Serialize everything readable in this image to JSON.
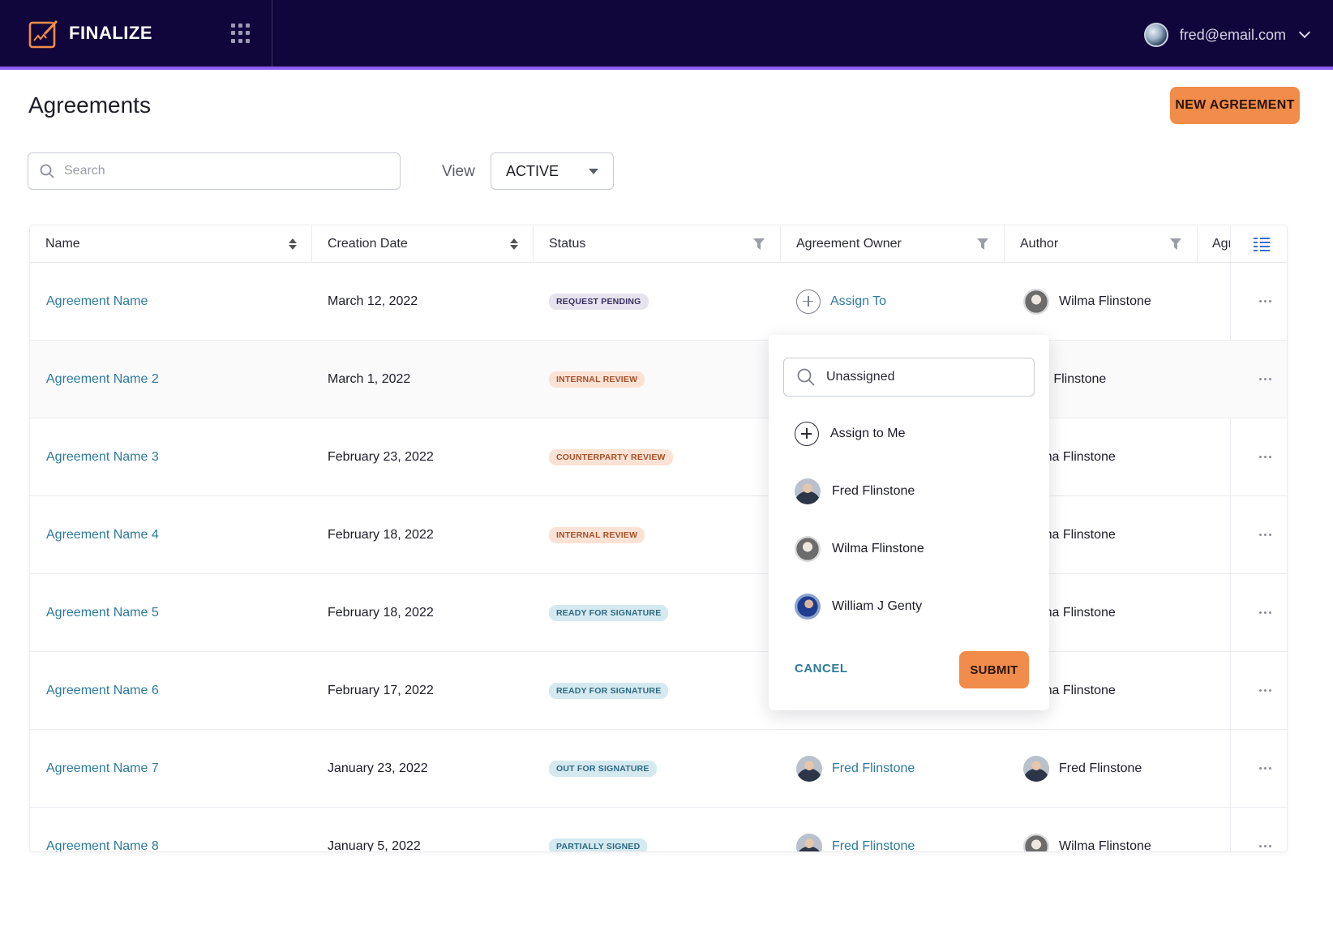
{
  "app": {
    "name": "FINALIZE",
    "user_email": "fred@email.com"
  },
  "page": {
    "title": "Agreements",
    "new_button": "NEW AGREEMENT"
  },
  "search": {
    "placeholder": "Search"
  },
  "view": {
    "label": "View",
    "selected": "ACTIVE"
  },
  "columns": [
    "Name",
    "Creation Date",
    "Status",
    "Agreement Owner",
    "Author",
    "Agr"
  ],
  "status_colors": {
    "REQUEST PENDING": {
      "bg": "#e6e3ee",
      "fg": "#3b2f63"
    },
    "INTERNAL REVIEW": {
      "bg": "#fbe2d4",
      "fg": "#a5512a"
    },
    "COUNTERPARTY REVIEW": {
      "bg": "#fbe2d4",
      "fg": "#a5512a"
    },
    "READY FOR SIGNATURE": {
      "bg": "#d5e9f0",
      "fg": "#2d6a82"
    },
    "OUT FOR SIGNATURE": {
      "bg": "#d5e9f0",
      "fg": "#2d6a82"
    },
    "PARTIALLY SIGNED": {
      "bg": "#d5e9f0",
      "fg": "#2d6a82"
    }
  },
  "rows": [
    {
      "name": "Agreement Name",
      "date": "March 12, 2022",
      "status": "REQUEST PENDING",
      "owner": "Assign To",
      "author": "Wilma Flinstone"
    },
    {
      "name": "Agreement Name 2",
      "date": "March 1, 2022",
      "status": "INTERNAL REVIEW",
      "owner": "",
      "author": "Fred Flinstone"
    },
    {
      "name": "Agreement Name 3",
      "date": "February 23, 2022",
      "status": "COUNTERPARTY REVIEW",
      "owner": "",
      "author": "Wilma Flinstone"
    },
    {
      "name": "Agreement Name 4",
      "date": "February 18, 2022",
      "status": "INTERNAL REVIEW",
      "owner": "",
      "author": "Wilma Flinstone"
    },
    {
      "name": "Agreement Name 5",
      "date": "February 18, 2022",
      "status": "READY FOR SIGNATURE",
      "owner": "",
      "author": "Wilma Flinstone"
    },
    {
      "name": "Agreement Name 6",
      "date": "February 17, 2022",
      "status": "READY FOR SIGNATURE",
      "owner": "",
      "author": "Wilma Flinstone"
    },
    {
      "name": "Agreement Name 7",
      "date": "January 23, 2022",
      "status": "OUT FOR SIGNATURE",
      "owner": "Fred Flinstone",
      "author": "Fred Flinstone"
    },
    {
      "name": "Agreement Name 8",
      "date": "January 5, 2022",
      "status": "PARTIALLY SIGNED",
      "owner": "Fred Flinstone",
      "author": "Wilma Flinstone"
    }
  ],
  "assign_popover": {
    "search_value": "Unassigned",
    "assign_to_me": "Assign to Me",
    "users": [
      "Fred Flinstone",
      "Wilma Flinstone",
      "William J Genty"
    ],
    "cancel": "CANCEL",
    "submit": "SUBMIT"
  }
}
